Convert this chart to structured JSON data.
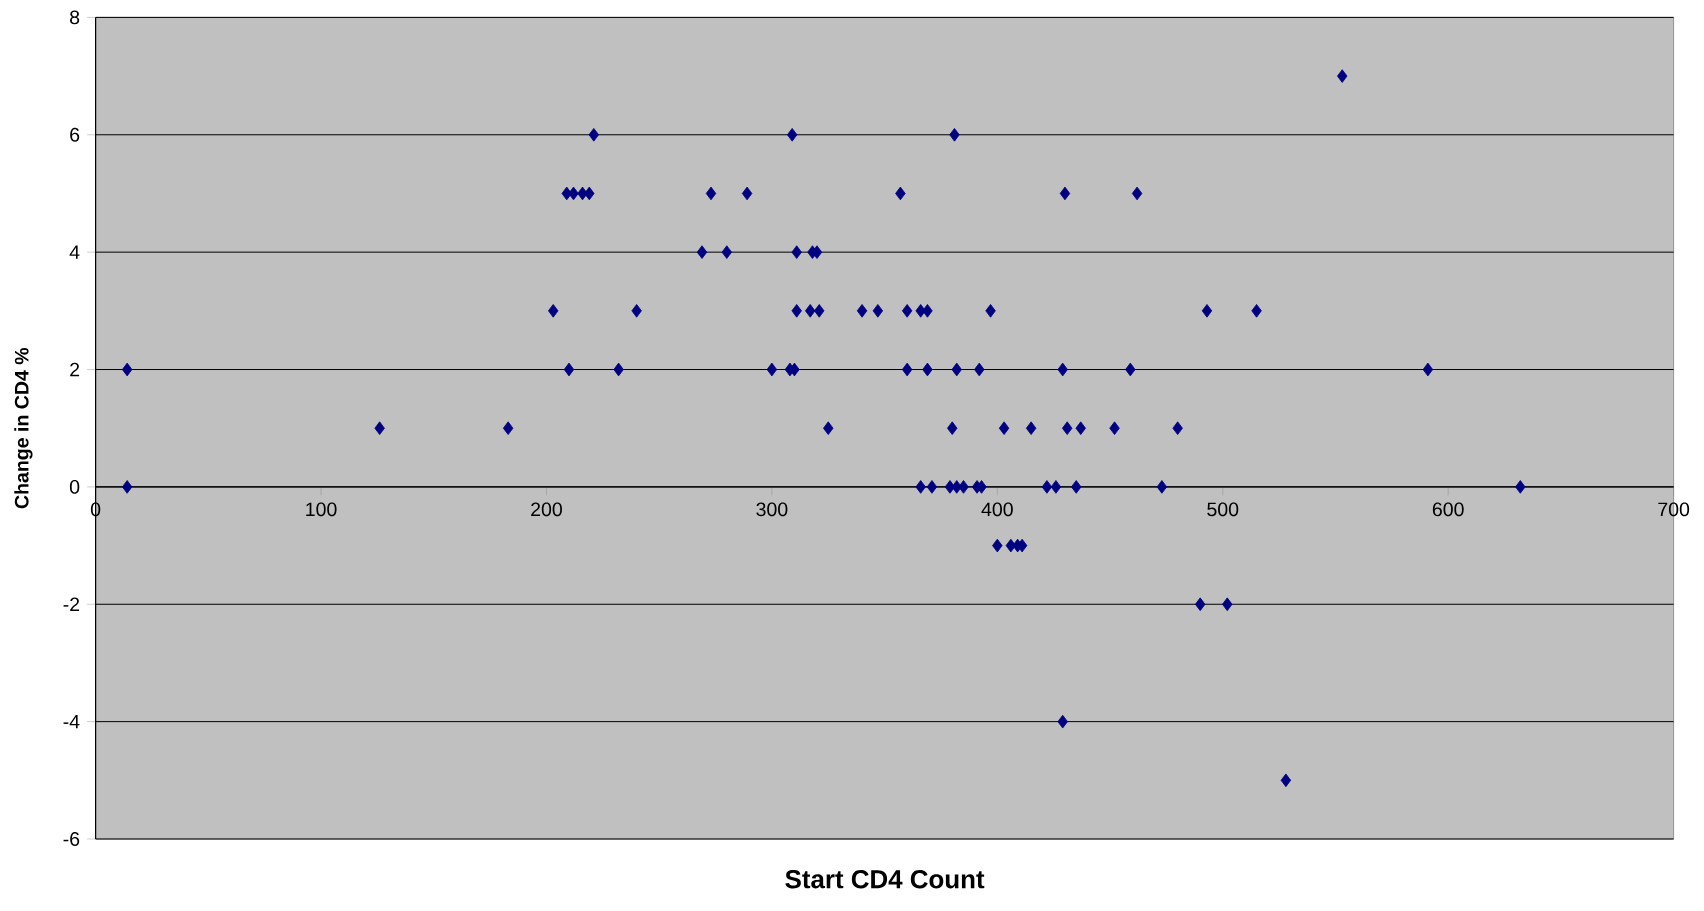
{
  "chart_data": {
    "type": "scatter",
    "xlabel": "Start CD4 Count",
    "ylabel": "Change in CD4 %",
    "xlim": [
      0,
      700
    ],
    "xticks": [
      0,
      100,
      200,
      300,
      400,
      500,
      600,
      700
    ],
    "ylim": [
      -6,
      8
    ],
    "yticks": [
      -6,
      -4,
      -2,
      0,
      2,
      4,
      6,
      8
    ],
    "grid": "y",
    "marker": "diamond",
    "series": [
      {
        "color": "#000080",
        "x": [
          14,
          14,
          126,
          183,
          203,
          209,
          212,
          216,
          219,
          210,
          221,
          232,
          240,
          269,
          273,
          280,
          289,
          300,
          308,
          310,
          309,
          311,
          311,
          317,
          318,
          320,
          321,
          325,
          340,
          347,
          357,
          360,
          360,
          366,
          369,
          369,
          366,
          371,
          380,
          381,
          379,
          382,
          385,
          382,
          391,
          393,
          392,
          397,
          400,
          403,
          406,
          409,
          411,
          415,
          422,
          426,
          429,
          430,
          429,
          431,
          435,
          437,
          452,
          459,
          462,
          473,
          480,
          490,
          493,
          502,
          515,
          528,
          553,
          591,
          632
        ],
        "values": [
          2,
          0,
          1,
          1,
          3,
          5,
          5,
          5,
          5,
          2,
          6,
          2,
          3,
          4,
          5,
          4,
          5,
          2,
          2,
          2,
          6,
          4,
          3,
          3,
          4,
          4,
          3,
          1,
          3,
          3,
          5,
          3,
          2,
          3,
          3,
          2,
          0,
          0,
          1,
          6,
          0,
          0,
          0,
          2,
          0,
          0,
          2,
          3,
          -1,
          1,
          -1,
          -1,
          -1,
          1,
          0,
          0,
          2,
          5,
          -4,
          1,
          0,
          1,
          1,
          2,
          5,
          0,
          1,
          -2,
          3,
          -2,
          3,
          -5,
          7,
          2,
          0
        ]
      }
    ]
  }
}
